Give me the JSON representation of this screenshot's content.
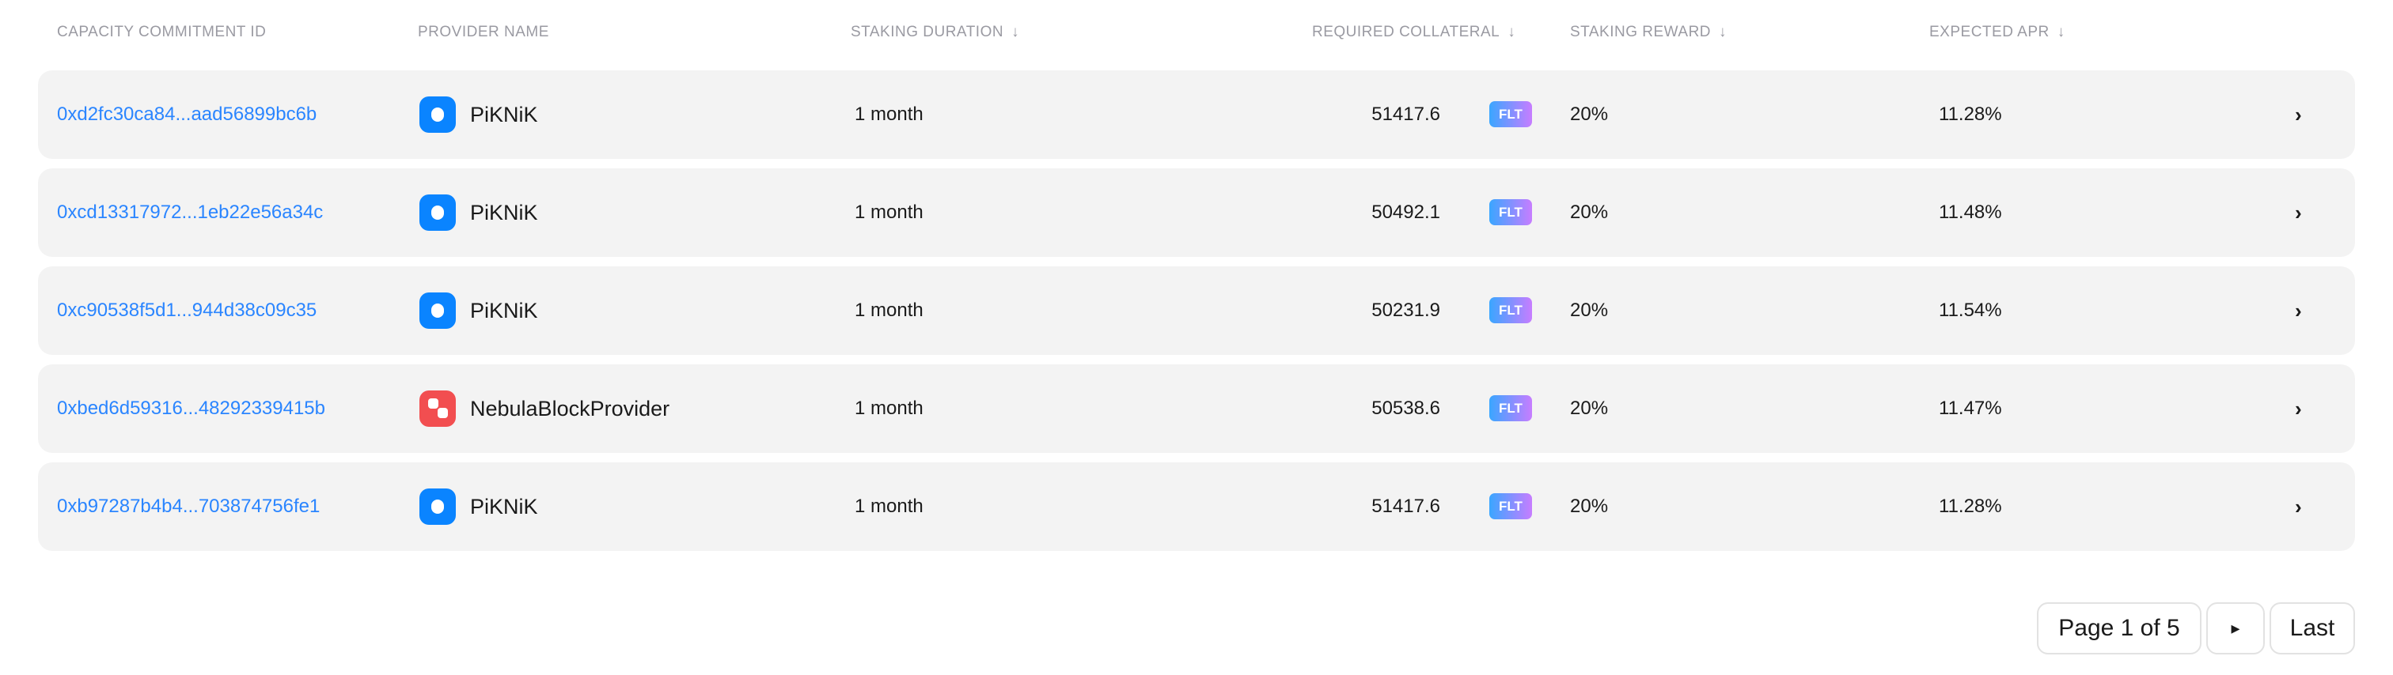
{
  "columns": {
    "id": "Capacity Commitment ID",
    "provider": "Provider Name",
    "duration": "Staking Duration",
    "collateral": "Required Collateral",
    "reward": "Staking Reward",
    "apr": "Expected APR",
    "sort_icon": "↓"
  },
  "rows": [
    {
      "id": "0xd2fc30ca84...aad56899bc6b",
      "provider": "PiKNiK",
      "provider_icon": "blue",
      "duration": "1 month",
      "collateral": "51417.6",
      "token": "FLT",
      "reward": "20%",
      "apr": "11.28%"
    },
    {
      "id": "0xcd13317972...1eb22e56a34c",
      "provider": "PiKNiK",
      "provider_icon": "blue",
      "duration": "1 month",
      "collateral": "50492.1",
      "token": "FLT",
      "reward": "20%",
      "apr": "11.48%"
    },
    {
      "id": "0xc90538f5d1...944d38c09c35",
      "provider": "PiKNiK",
      "provider_icon": "blue",
      "duration": "1 month",
      "collateral": "50231.9",
      "token": "FLT",
      "reward": "20%",
      "apr": "11.54%"
    },
    {
      "id": "0xbed6d59316...48292339415b",
      "provider": "NebulaBlockProvider",
      "provider_icon": "red",
      "duration": "1 month",
      "collateral": "50538.6",
      "token": "FLT",
      "reward": "20%",
      "apr": "11.47%"
    },
    {
      "id": "0xb97287b4b4...703874756fe1",
      "provider": "PiKNiK",
      "provider_icon": "blue",
      "duration": "1 month",
      "collateral": "51417.6",
      "token": "FLT",
      "reward": "20%",
      "apr": "11.28%"
    }
  ],
  "pagination": {
    "page_label": "Page 1 of 5",
    "next_icon": "▸",
    "last_label": "Last"
  },
  "colors": {
    "link": "#2a85ff",
    "row_bg": "#f3f3f3",
    "piknik": "#0a84ff",
    "nebula": "#f24e50"
  }
}
